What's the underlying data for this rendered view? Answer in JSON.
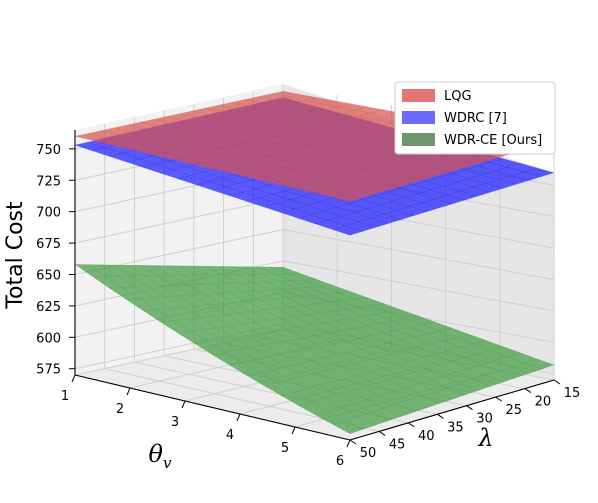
{
  "chart_data": {
    "type": "surface",
    "zlabel": "Total Cost",
    "xlabel": "θ",
    "xlabel_subscript": "v",
    "ylabel": "λ",
    "x_ticks": [
      "1",
      "2",
      "3",
      "4",
      "5",
      "6"
    ],
    "y_ticks": [
      "15",
      "20",
      "25",
      "30",
      "35",
      "40",
      "45",
      "50"
    ],
    "z_ticks": [
      "575",
      "600",
      "625",
      "650",
      "675",
      "700",
      "725",
      "750"
    ],
    "xlim": [
      1,
      6
    ],
    "ylim": [
      15,
      50
    ],
    "zlim": [
      570,
      765
    ],
    "grid": true,
    "legend_position": "top-right",
    "series": [
      {
        "name": "LQG",
        "color": "#d9534f",
        "alpha": 0.7,
        "z_corners": {
          "x1_y15": 760,
          "x1_y50": 760,
          "x6_y15": 760,
          "x6_y50": 760
        }
      },
      {
        "name": "WDRC [7]",
        "color": "#1a1aff",
        "alpha": 0.7,
        "z_corners": {
          "x1_y15": 755,
          "x1_y50": 753,
          "x6_y15": 735,
          "x6_y50": 733
        }
      },
      {
        "name": "WDR-CE [Ours]",
        "color": "#3f9a3f",
        "alpha": 0.7,
        "z_corners": {
          "x1_y15": 620,
          "x1_y50": 640,
          "x6_y15": 582,
          "x6_y50": 575
        }
      }
    ]
  }
}
